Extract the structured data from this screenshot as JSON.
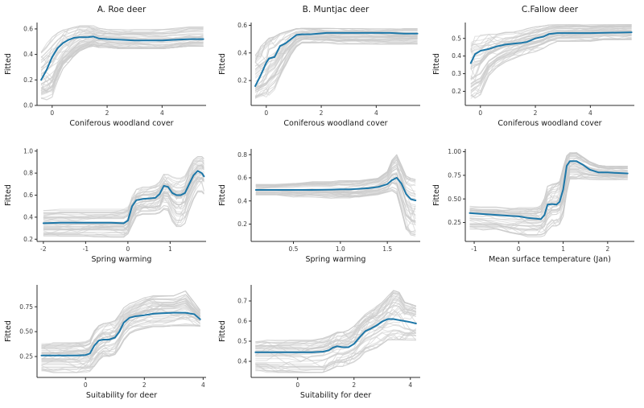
{
  "figure": {
    "background": "#ffffff",
    "accent_color": "#1d77a8",
    "ensemble_color": "#cccccc",
    "axis_color": "#2b2b2b",
    "tick_label_color": "#3c3c3c",
    "label_color": "#1a1a1a",
    "ylabel": "Fitted"
  },
  "chart_data": [
    {
      "id": "roe-coniferous",
      "type": "line",
      "title": "A. Roe deer",
      "xlabel": "Coniferous woodland cover",
      "ylabel": "Fitted",
      "xlim": [
        -0.55,
        5.6
      ],
      "ylim": [
        0.0,
        0.65
      ],
      "xtick_values": [
        0,
        2,
        4
      ],
      "xticks": [
        "0",
        "2",
        "4"
      ],
      "ytick_values": [
        0.0,
        0.2,
        0.4,
        0.6
      ],
      "yticks": [
        "0.0",
        "0.2",
        "0.4",
        "0.6"
      ],
      "x": [
        -0.4,
        -0.2,
        0,
        0.2,
        0.4,
        0.6,
        0.8,
        1.0,
        1.3,
        1.5,
        1.7,
        2.0,
        2.5,
        3.0,
        3.5,
        4.0,
        4.5,
        5.0,
        5.5
      ],
      "mean": [
        0.2,
        0.28,
        0.38,
        0.45,
        0.49,
        0.515,
        0.53,
        0.535,
        0.535,
        0.54,
        0.525,
        0.52,
        0.515,
        0.51,
        0.51,
        0.51,
        0.515,
        0.52,
        0.52
      ],
      "lo": [
        0.02,
        0.03,
        0.05,
        0.18,
        0.28,
        0.33,
        0.38,
        0.42,
        0.45,
        0.46,
        0.45,
        0.45,
        0.44,
        0.44,
        0.44,
        0.44,
        0.45,
        0.46,
        0.46
      ],
      "hi": [
        0.45,
        0.5,
        0.55,
        0.58,
        0.6,
        0.61,
        0.62,
        0.63,
        0.63,
        0.63,
        0.61,
        0.6,
        0.6,
        0.6,
        0.6,
        0.6,
        0.61,
        0.62,
        0.62
      ]
    },
    {
      "id": "muntjac-coniferous",
      "type": "line",
      "title": "B. Muntjac deer",
      "xlabel": "Coniferous woodland cover",
      "ylabel": "Fitted",
      "xlim": [
        -0.55,
        5.6
      ],
      "ylim": [
        0.02,
        0.62
      ],
      "xtick_values": [
        0,
        2,
        4
      ],
      "xticks": [
        "0",
        "2",
        "4"
      ],
      "ytick_values": [
        0.2,
        0.4,
        0.6
      ],
      "yticks": [
        "0.2",
        "0.4",
        "0.6"
      ],
      "x": [
        -0.4,
        -0.2,
        0,
        0.1,
        0.3,
        0.5,
        0.7,
        0.9,
        1.1,
        1.3,
        1.6,
        1.9,
        2.2,
        2.6,
        3.0,
        3.5,
        4.0,
        4.5,
        5.0,
        5.5
      ],
      "mean": [
        0.16,
        0.24,
        0.33,
        0.36,
        0.37,
        0.45,
        0.47,
        0.5,
        0.53,
        0.535,
        0.535,
        0.54,
        0.545,
        0.545,
        0.545,
        0.545,
        0.545,
        0.545,
        0.54,
        0.54
      ],
      "lo": [
        0.03,
        0.04,
        0.05,
        0.08,
        0.12,
        0.22,
        0.3,
        0.38,
        0.44,
        0.47,
        0.47,
        0.47,
        0.47,
        0.46,
        0.46,
        0.46,
        0.46,
        0.46,
        0.46,
        0.46
      ],
      "hi": [
        0.41,
        0.46,
        0.5,
        0.52,
        0.53,
        0.55,
        0.56,
        0.57,
        0.58,
        0.58,
        0.58,
        0.58,
        0.58,
        0.58,
        0.58,
        0.58,
        0.58,
        0.58,
        0.58,
        0.58
      ]
    },
    {
      "id": "fallow-coniferous",
      "type": "line",
      "title": "C.Fallow deer",
      "xlabel": "Coniferous woodland cover",
      "ylabel": "Fitted",
      "xlim": [
        -0.55,
        5.6
      ],
      "ylim": [
        0.12,
        0.59
      ],
      "xtick_values": [
        0,
        2,
        4
      ],
      "xticks": [
        "0",
        "2",
        "4"
      ],
      "ytick_values": [
        0.2,
        0.3,
        0.4,
        0.5
      ],
      "yticks": [
        "0.2",
        "0.3",
        "0.4",
        "0.5"
      ],
      "x": [
        -0.35,
        -0.2,
        0,
        0.3,
        0.6,
        0.9,
        1.2,
        1.5,
        1.7,
        2.0,
        2.3,
        2.5,
        2.8,
        3.2,
        3.6,
        4.0,
        4.5,
        5.0,
        5.5
      ],
      "mean": [
        0.36,
        0.41,
        0.43,
        0.44,
        0.455,
        0.465,
        0.47,
        0.475,
        0.48,
        0.5,
        0.51,
        0.525,
        0.53,
        0.53,
        0.53,
        0.53,
        0.532,
        0.533,
        0.535
      ],
      "lo": [
        0.13,
        0.15,
        0.17,
        0.28,
        0.33,
        0.36,
        0.38,
        0.4,
        0.41,
        0.42,
        0.44,
        0.46,
        0.48,
        0.48,
        0.48,
        0.48,
        0.49,
        0.49,
        0.49
      ],
      "hi": [
        0.52,
        0.53,
        0.53,
        0.53,
        0.53,
        0.54,
        0.54,
        0.55,
        0.56,
        0.57,
        0.575,
        0.58,
        0.58,
        0.58,
        0.58,
        0.58,
        0.58,
        0.58,
        0.58
      ]
    },
    {
      "id": "roe-spring-warming",
      "type": "line",
      "title": "",
      "xlabel": "Spring warming",
      "ylabel": "Fitted",
      "xlim": [
        -2.15,
        1.85
      ],
      "ylim": [
        0.18,
        1.02
      ],
      "xtick_values": [
        -2,
        -1,
        0,
        1
      ],
      "xticks": [
        "-2",
        "-1",
        "0",
        "1"
      ],
      "ytick_values": [
        0.2,
        0.4,
        0.6,
        0.8,
        1.0
      ],
      "yticks": [
        "0.2",
        "0.4",
        "0.6",
        "0.8",
        "1.0"
      ],
      "x": [
        -2.0,
        -1.6,
        -1.2,
        -0.8,
        -0.4,
        -0.1,
        0.0,
        0.1,
        0.2,
        0.35,
        0.5,
        0.65,
        0.75,
        0.85,
        0.95,
        1.05,
        1.15,
        1.25,
        1.35,
        1.45,
        1.55,
        1.65,
        1.75,
        1.8
      ],
      "mean": [
        0.345,
        0.35,
        0.35,
        0.35,
        0.35,
        0.345,
        0.37,
        0.5,
        0.555,
        0.565,
        0.57,
        0.575,
        0.61,
        0.685,
        0.675,
        0.62,
        0.6,
        0.6,
        0.62,
        0.7,
        0.78,
        0.82,
        0.8,
        0.77
      ],
      "lo": [
        0.21,
        0.21,
        0.21,
        0.21,
        0.21,
        0.21,
        0.24,
        0.32,
        0.4,
        0.42,
        0.42,
        0.42,
        0.43,
        0.46,
        0.45,
        0.35,
        0.3,
        0.3,
        0.33,
        0.45,
        0.55,
        0.62,
        0.62,
        0.6
      ],
      "hi": [
        0.48,
        0.48,
        0.48,
        0.48,
        0.48,
        0.48,
        0.5,
        0.6,
        0.66,
        0.68,
        0.68,
        0.7,
        0.73,
        0.8,
        0.8,
        0.78,
        0.77,
        0.77,
        0.79,
        0.86,
        0.93,
        0.96,
        0.96,
        0.94
      ]
    },
    {
      "id": "muntjac-spring-warming",
      "type": "line",
      "title": "",
      "xlabel": "Spring warming",
      "ylabel": "Fitted",
      "xlim": [
        0.05,
        1.85
      ],
      "ylim": [
        0.05,
        0.85
      ],
      "xtick_values": [
        0.5,
        1.0,
        1.5
      ],
      "xticks": [
        "0.5",
        "1.0",
        "1.5"
      ],
      "ytick_values": [
        0.2,
        0.4,
        0.6,
        0.8
      ],
      "yticks": [
        "0.2",
        "0.4",
        "0.6",
        "0.8"
      ],
      "x": [
        0.1,
        0.3,
        0.5,
        0.7,
        0.9,
        1.0,
        1.1,
        1.2,
        1.3,
        1.4,
        1.5,
        1.55,
        1.6,
        1.65,
        1.7,
        1.75,
        1.8
      ],
      "mean": [
        0.495,
        0.495,
        0.495,
        0.495,
        0.498,
        0.5,
        0.5,
        0.505,
        0.51,
        0.52,
        0.545,
        0.58,
        0.6,
        0.55,
        0.46,
        0.415,
        0.405
      ],
      "lo": [
        0.44,
        0.44,
        0.43,
        0.43,
        0.42,
        0.42,
        0.42,
        0.43,
        0.44,
        0.45,
        0.47,
        0.48,
        0.45,
        0.3,
        0.14,
        0.09,
        0.08
      ],
      "hi": [
        0.55,
        0.55,
        0.56,
        0.57,
        0.57,
        0.58,
        0.58,
        0.58,
        0.59,
        0.6,
        0.66,
        0.76,
        0.81,
        0.72,
        0.63,
        0.61,
        0.6
      ]
    },
    {
      "id": "fallow-mean-surface-temperature",
      "type": "line",
      "title": "",
      "xlabel": "Mean surface temperature (Jan)",
      "ylabel": "Fitted",
      "xlim": [
        -1.2,
        2.6
      ],
      "ylim": [
        0.05,
        1.03
      ],
      "xtick_values": [
        -1,
        0,
        1,
        2
      ],
      "xticks": [
        "-1",
        "0",
        "1",
        "2"
      ],
      "ytick_values": [
        0.25,
        0.5,
        0.75,
        1.0
      ],
      "yticks": [
        "0.25",
        "0.50",
        "0.75",
        "1.00"
      ],
      "x": [
        -1.1,
        -0.8,
        -0.5,
        -0.2,
        0.0,
        0.2,
        0.4,
        0.5,
        0.58,
        0.65,
        0.75,
        0.85,
        0.92,
        1.0,
        1.08,
        1.15,
        1.3,
        1.45,
        1.6,
        1.8,
        2.0,
        2.2,
        2.45
      ],
      "mean": [
        0.35,
        0.34,
        0.33,
        0.32,
        0.315,
        0.3,
        0.29,
        0.285,
        0.33,
        0.44,
        0.445,
        0.44,
        0.47,
        0.6,
        0.85,
        0.9,
        0.9,
        0.86,
        0.81,
        0.78,
        0.78,
        0.775,
        0.77
      ],
      "lo": [
        0.16,
        0.16,
        0.16,
        0.12,
        0.1,
        0.09,
        0.09,
        0.09,
        0.1,
        0.15,
        0.2,
        0.2,
        0.22,
        0.3,
        0.55,
        0.7,
        0.7,
        0.7,
        0.7,
        0.7,
        0.7,
        0.7,
        0.7
      ],
      "hi": [
        0.44,
        0.43,
        0.43,
        0.42,
        0.42,
        0.42,
        0.42,
        0.44,
        0.52,
        0.65,
        0.67,
        0.68,
        0.7,
        0.85,
        0.97,
        1.0,
        1.0,
        0.95,
        0.9,
        0.86,
        0.85,
        0.85,
        0.85
      ]
    },
    {
      "id": "roe-suitability",
      "type": "line",
      "title": "",
      "xlabel": "Suitability for deer",
      "ylabel": "Fitted",
      "xlim": [
        -1.65,
        4.1
      ],
      "ylim": [
        0.04,
        0.97
      ],
      "xtick_values": [
        0,
        2,
        4
      ],
      "xticks": [
        "0",
        "2",
        "4"
      ],
      "ytick_values": [
        0.25,
        0.5,
        0.75
      ],
      "yticks": [
        "0.25",
        "0.50",
        "0.75"
      ],
      "x": [
        -1.5,
        -1.1,
        -0.7,
        -0.3,
        0.0,
        0.15,
        0.3,
        0.45,
        0.6,
        0.8,
        1.0,
        1.15,
        1.3,
        1.5,
        1.7,
        2.0,
        2.3,
        2.6,
        3.0,
        3.4,
        3.7,
        3.9
      ],
      "mean": [
        0.26,
        0.26,
        0.26,
        0.26,
        0.265,
        0.28,
        0.36,
        0.41,
        0.42,
        0.42,
        0.44,
        0.5,
        0.59,
        0.64,
        0.655,
        0.665,
        0.68,
        0.685,
        0.69,
        0.69,
        0.675,
        0.625
      ],
      "lo": [
        0.08,
        0.08,
        0.08,
        0.08,
        0.08,
        0.09,
        0.14,
        0.2,
        0.24,
        0.24,
        0.26,
        0.32,
        0.4,
        0.47,
        0.5,
        0.52,
        0.54,
        0.54,
        0.55,
        0.55,
        0.55,
        0.55
      ],
      "hi": [
        0.4,
        0.4,
        0.4,
        0.4,
        0.41,
        0.43,
        0.52,
        0.57,
        0.59,
        0.6,
        0.62,
        0.68,
        0.75,
        0.79,
        0.81,
        0.85,
        0.87,
        0.87,
        0.87,
        0.92,
        0.8,
        0.72
      ]
    },
    {
      "id": "muntjac-suitability",
      "type": "line",
      "title": "",
      "xlabel": "Suitability for deer",
      "ylabel": "Fitted",
      "xlim": [
        -1.65,
        4.35
      ],
      "ylim": [
        0.32,
        0.78
      ],
      "xtick_values": [
        0,
        2,
        4
      ],
      "xticks": [
        "0",
        "2",
        "4"
      ],
      "ytick_values": [
        0.4,
        0.5,
        0.6,
        0.7
      ],
      "yticks": [
        "0.4",
        "0.5",
        "0.6",
        "0.7"
      ],
      "x": [
        -1.5,
        -1.1,
        -0.7,
        -0.3,
        0.1,
        0.5,
        0.9,
        1.1,
        1.25,
        1.4,
        1.6,
        1.8,
        2.0,
        2.2,
        2.4,
        2.6,
        2.8,
        3.0,
        3.2,
        3.4,
        3.6,
        3.8,
        4.0,
        4.2
      ],
      "mean": [
        0.445,
        0.445,
        0.445,
        0.445,
        0.445,
        0.445,
        0.448,
        0.455,
        0.468,
        0.475,
        0.47,
        0.47,
        0.487,
        0.52,
        0.55,
        0.563,
        0.578,
        0.598,
        0.61,
        0.61,
        0.605,
        0.6,
        0.595,
        0.588
      ],
      "lo": [
        0.34,
        0.34,
        0.34,
        0.34,
        0.34,
        0.34,
        0.34,
        0.35,
        0.36,
        0.37,
        0.37,
        0.38,
        0.39,
        0.41,
        0.44,
        0.45,
        0.46,
        0.48,
        0.5,
        0.5,
        0.5,
        0.5,
        0.5,
        0.5
      ],
      "hi": [
        0.51,
        0.51,
        0.51,
        0.51,
        0.51,
        0.51,
        0.52,
        0.53,
        0.54,
        0.55,
        0.55,
        0.56,
        0.58,
        0.61,
        0.64,
        0.66,
        0.68,
        0.7,
        0.73,
        0.76,
        0.75,
        0.7,
        0.69,
        0.68
      ]
    }
  ]
}
